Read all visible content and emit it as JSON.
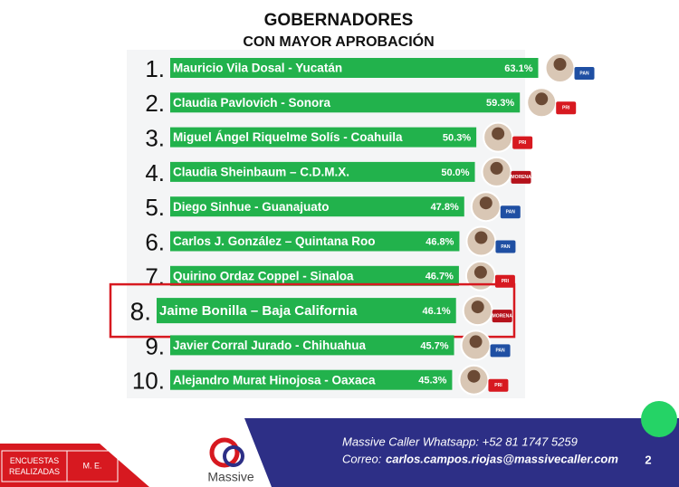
{
  "chart_data": {
    "type": "bar",
    "orientation": "horizontal",
    "title": "GOBERNADORES",
    "subtitle": "CON MAYOR APROBACIÓN",
    "ranks": [
      "1.",
      "2.",
      "3.",
      "4.",
      "5.",
      "6.",
      "7.",
      "8.",
      "9.",
      "10."
    ],
    "categories": [
      "Mauricio Vila Dosal - Yucatán",
      "Claudia Pavlovich - Sonora",
      "Miguel Ángel Riquelme Solís - Coahuila",
      "Claudia Sheinbaum – C.D.M.X.",
      "Diego Sinhue - Guanajuato",
      "Carlos J. González – Quintana Roo",
      "Quirino Ordaz Coppel - Sinaloa",
      "Jaime Bonilla – Baja California",
      "Javier Corral Jurado - Chihuahua",
      "Alejandro Murat Hinojosa - Oaxaca"
    ],
    "values": [
      63.1,
      59.3,
      50.3,
      50.0,
      47.8,
      46.8,
      46.7,
      46.1,
      45.7,
      45.3
    ],
    "value_labels": [
      "63.1%",
      "59.3%",
      "50.3%",
      "50.0%",
      "47.8%",
      "46.8%",
      "46.7%",
      "46.1%",
      "45.7%",
      "45.3%"
    ],
    "parties": [
      "PAN",
      "PRI",
      "PRI",
      "MORENA",
      "PAN",
      "PAN",
      "PRI",
      "MORENA",
      "PAN",
      "PRI"
    ],
    "color": "#22b24c",
    "xlim": [
      -13,
      66
    ],
    "highlight_index": 7
  },
  "footer": {
    "whatsapp": "Massive Caller Whatsapp: +52   81 1747 5259",
    "email_label": "Correo:",
    "email": "carlos.campos.riojas@massivecaller.com",
    "page": "2",
    "brand": "Massive",
    "table_headers": [
      "ENCUESTAS REALIZADAS",
      "M. E."
    ]
  }
}
